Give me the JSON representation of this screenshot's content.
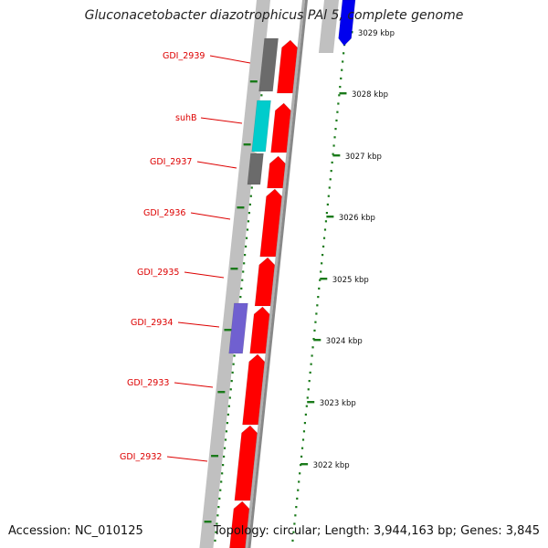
{
  "title": "Gluconacetobacter diazotrophicus PAl 5, complete genome",
  "footer": {
    "accession": "Accession: NC_010125",
    "summary": "Topology: circular; Length: 3,944,163 bp; Genes: 3,845"
  },
  "colors": {
    "forward_gene": "#ff0000",
    "reverse_gene_other": "#6b6b6b",
    "reverse_gene_cyan": "#00cccc",
    "reverse_gene_purple": "#7060d0",
    "reverse_gene_blue": "#0000ee",
    "backbone_light": "#c0c0c0",
    "backbone_dark": "#888888",
    "tick": "#1a7a1a",
    "gene_label": "#dd0000"
  },
  "tick_labels": [
    {
      "kbp": 3029,
      "label": "3029 kbp"
    },
    {
      "kbp": 3028,
      "label": "3028 kbp"
    },
    {
      "kbp": 3027,
      "label": "3027 kbp"
    },
    {
      "kbp": 3026,
      "label": "3026 kbp"
    },
    {
      "kbp": 3025,
      "label": "3025 kbp"
    },
    {
      "kbp": 3024,
      "label": "3024 kbp"
    },
    {
      "kbp": 3023,
      "label": "3023 kbp"
    },
    {
      "kbp": 3022,
      "label": "3022 kbp"
    }
  ],
  "gene_labels": [
    "GDI_2939",
    "suhB",
    "GDI_2937",
    "GDI_2936",
    "GDI_2935",
    "GDI_2934",
    "GDI_2933",
    "GDI_2932"
  ]
}
